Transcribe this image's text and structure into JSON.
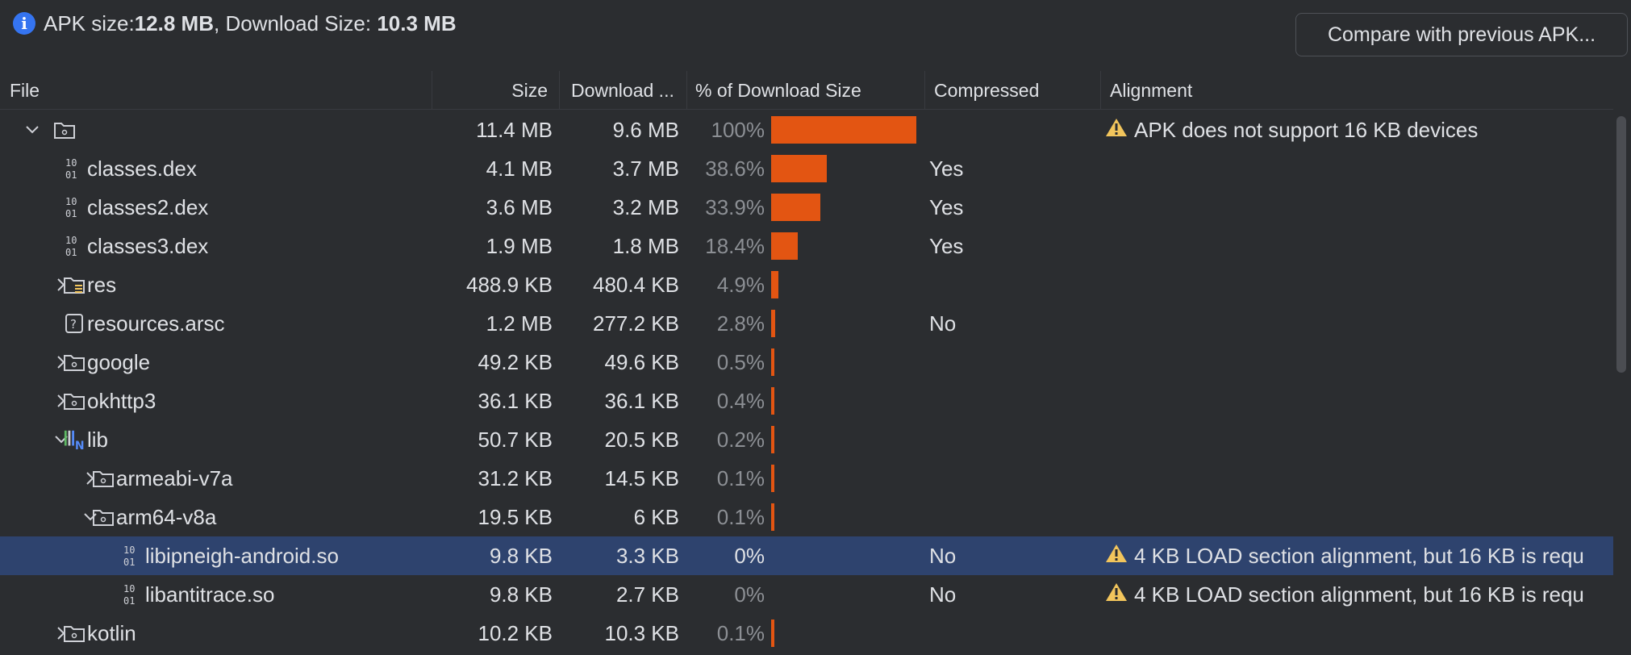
{
  "summary": {
    "apk_size_label": "APK size: ",
    "apk_size_value": "12.8 MB",
    "separator": ", ",
    "download_size_label": "Download Size: ",
    "download_size_value": "10.3 MB",
    "info_icon": "info-icon"
  },
  "compare_button": {
    "label": "Compare with previous APK..."
  },
  "columns": {
    "file": "File",
    "size": "Size",
    "download": "Download ...",
    "percent": "% of Download Size",
    "compressed": "Compressed",
    "alignment": "Alignment"
  },
  "colors": {
    "bar": "#e35512",
    "selected_row": "#2e436e",
    "warning": "#f2c55c",
    "info": "#3574f0"
  },
  "rows": [
    {
      "name": "",
      "icon": "folder-icon",
      "expander": "expanded",
      "size": "11.4 MB",
      "download": "9.6 MB",
      "percent": "100%",
      "fraction": 1.0,
      "compressed": "",
      "alignment": "APK does not support 16 KB devices",
      "warning": true
    },
    {
      "name": "classes.dex",
      "icon": "binary-file-icon",
      "expander": "none",
      "size": "4.1 MB",
      "download": "3.7 MB",
      "percent": "38.6%",
      "fraction": 0.386,
      "compressed": "Yes",
      "alignment": "",
      "warning": false
    },
    {
      "name": "classes2.dex",
      "icon": "binary-file-icon",
      "expander": "none",
      "size": "3.6 MB",
      "download": "3.2 MB",
      "percent": "33.9%",
      "fraction": 0.339,
      "compressed": "Yes",
      "alignment": "",
      "warning": false
    },
    {
      "name": "classes3.dex",
      "icon": "binary-file-icon",
      "expander": "none",
      "size": "1.9 MB",
      "download": "1.8 MB",
      "percent": "18.4%",
      "fraction": 0.184,
      "compressed": "Yes",
      "alignment": "",
      "warning": false
    },
    {
      "name": "res",
      "icon": "resource-folder-icon",
      "expander": "collapsed",
      "size": "488.9 KB",
      "download": "480.4 KB",
      "percent": "4.9%",
      "fraction": 0.049,
      "compressed": "",
      "alignment": "",
      "warning": false
    },
    {
      "name": "resources.arsc",
      "icon": "unknown-file-icon",
      "expander": "none",
      "size": "1.2 MB",
      "download": "277.2 KB",
      "percent": "2.8%",
      "fraction": 0.028,
      "compressed": "No",
      "alignment": "",
      "warning": false
    },
    {
      "name": "google",
      "icon": "folder-icon",
      "expander": "collapsed",
      "size": "49.2 KB",
      "download": "49.6 KB",
      "percent": "0.5%",
      "fraction": 0.005,
      "compressed": "",
      "alignment": "",
      "warning": false
    },
    {
      "name": "okhttp3",
      "icon": "folder-icon",
      "expander": "collapsed",
      "size": "36.1 KB",
      "download": "36.1 KB",
      "percent": "0.4%",
      "fraction": 0.004,
      "compressed": "",
      "alignment": "",
      "warning": false
    },
    {
      "name": "lib",
      "icon": "native-lib-folder-icon",
      "expander": "expanded",
      "size": "50.7 KB",
      "download": "20.5 KB",
      "percent": "0.2%",
      "fraction": 0.002,
      "compressed": "",
      "alignment": "",
      "warning": false
    },
    {
      "name": "armeabi-v7a",
      "icon": "folder-icon",
      "expander": "collapsed",
      "size": "31.2 KB",
      "download": "14.5 KB",
      "percent": "0.1%",
      "fraction": 0.001,
      "compressed": "",
      "alignment": "",
      "warning": false
    },
    {
      "name": "arm64-v8a",
      "icon": "folder-icon",
      "expander": "expanded",
      "size": "19.5 KB",
      "download": "6 KB",
      "percent": "0.1%",
      "fraction": 0.001,
      "compressed": "",
      "alignment": "",
      "warning": false
    },
    {
      "name": "libipneigh-android.so",
      "icon": "binary-file-icon",
      "expander": "none",
      "size": "9.8 KB",
      "download": "3.3 KB",
      "percent": "0%",
      "fraction": 0,
      "compressed": "No",
      "alignment": "4 KB LOAD section alignment, but 16 KB is requ",
      "warning": true,
      "selected": true
    },
    {
      "name": "libantitrace.so",
      "icon": "binary-file-icon",
      "expander": "none",
      "size": "9.8 KB",
      "download": "2.7 KB",
      "percent": "0%",
      "fraction": 0,
      "compressed": "No",
      "alignment": "4 KB LOAD section alignment, but 16 KB is requ",
      "warning": true
    },
    {
      "name": "kotlin",
      "icon": "folder-icon",
      "expander": "collapsed",
      "size": "10.2 KB",
      "download": "10.3 KB",
      "percent": "0.1%",
      "fraction": 0.001,
      "compressed": "",
      "alignment": "",
      "warning": false
    }
  ]
}
